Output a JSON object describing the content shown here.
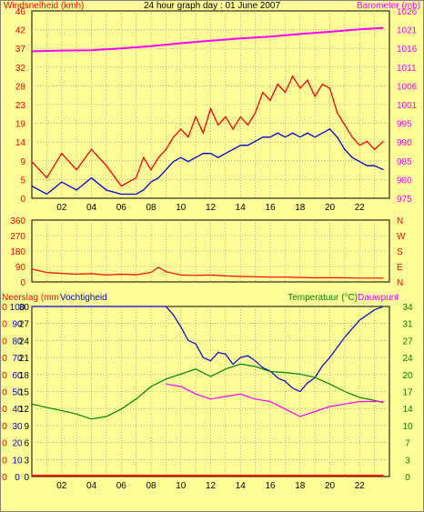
{
  "chart_data": [
    {
      "type": "line",
      "title": "24 hour graph day : 01 June 2007",
      "ylabel_left": "Windsnelheid (kmh)",
      "ylabel_right": "Barometer (mb)",
      "x_ticks": [
        "02",
        "04",
        "06",
        "08",
        "10",
        "12",
        "14",
        "16",
        "18",
        "20",
        "22"
      ],
      "y_left_ticks": [
        "0",
        "5",
        "9",
        "14",
        "19",
        "23",
        "28",
        "32",
        "37",
        "42",
        "46"
      ],
      "y_left_range": [
        0,
        46
      ],
      "y_right_ticks": [
        "975",
        "980",
        "985",
        "990",
        "995",
        "1001",
        "1006",
        "1011",
        "1016",
        "1021",
        "1026"
      ],
      "y_right_range": [
        975,
        1026
      ],
      "x_range": [
        0,
        24
      ],
      "grid": true,
      "series": [
        {
          "color": "#ff00ff",
          "x": [
            0,
            2,
            4,
            6,
            8,
            10,
            12,
            14,
            16,
            18,
            20,
            22,
            23.6
          ],
          "y": [
            1015,
            1015.2,
            1015.3,
            1015.8,
            1016.4,
            1017.2,
            1017.9,
            1018.5,
            1019,
            1019.7,
            1020.3,
            1021,
            1021.4
          ]
        },
        {
          "color": "#ff0000",
          "x": [
            0,
            1,
            2,
            3,
            4,
            5,
            6,
            7,
            7.5,
            8,
            8.5,
            9,
            9.5,
            10,
            10.5,
            11,
            11.5,
            12,
            12.5,
            13,
            13.5,
            14,
            14.5,
            15,
            15.5,
            16,
            16.5,
            17,
            17.5,
            18,
            18.5,
            19,
            19.5,
            20,
            20.5,
            21,
            21.5,
            22,
            22.5,
            23,
            23.6
          ],
          "y": [
            9,
            5,
            11,
            7,
            12,
            8,
            3,
            5,
            10,
            7,
            10,
            12,
            15,
            17,
            15,
            20,
            16,
            22,
            18,
            20,
            17,
            20,
            18,
            21,
            26,
            24,
            28,
            26,
            30,
            27,
            29,
            25,
            28,
            27,
            21,
            18,
            15,
            13,
            14,
            12,
            14
          ]
        },
        {
          "color": "#0000cc",
          "x": [
            0,
            1,
            2,
            3,
            4,
            5,
            6,
            7,
            7.5,
            8,
            8.5,
            9,
            9.5,
            10,
            10.5,
            11,
            11.5,
            12,
            12.5,
            13,
            13.5,
            14,
            14.5,
            15,
            15.5,
            16,
            16.5,
            17,
            17.5,
            18,
            18.5,
            19,
            19.5,
            20,
            20.5,
            21,
            21.5,
            22,
            22.5,
            23,
            23.6
          ],
          "y": [
            3,
            1,
            4,
            2,
            5,
            2,
            1,
            1,
            2,
            4,
            5,
            7,
            9,
            10,
            9,
            10,
            11,
            11,
            10,
            11,
            12,
            13,
            13,
            14,
            15,
            15,
            16,
            15,
            16,
            15,
            16,
            15,
            16,
            17,
            15,
            12,
            10,
            9,
            8,
            8,
            7
          ]
        }
      ]
    },
    {
      "type": "line",
      "ylabel_right_letters": [
        "N",
        "W",
        "S",
        "E",
        "N"
      ],
      "y_left_ticks": [
        "0",
        "90",
        "180",
        "270",
        "360"
      ],
      "y_range": [
        0,
        360
      ],
      "x_range": [
        0,
        24
      ],
      "grid": true,
      "series": [
        {
          "color": "#ff0000",
          "x": [
            0,
            1,
            2,
            3,
            4,
            5,
            6,
            7,
            8,
            8.5,
            9,
            10,
            11,
            12,
            13,
            14,
            15,
            16,
            17,
            18,
            19,
            20,
            21,
            22,
            23.6
          ],
          "y": [
            75,
            55,
            50,
            45,
            48,
            40,
            45,
            42,
            55,
            85,
            60,
            40,
            38,
            40,
            35,
            32,
            30,
            28,
            28,
            26,
            24,
            25,
            24,
            22,
            22
          ]
        }
      ]
    },
    {
      "type": "line",
      "ylabel_left": "Neerslag (mm",
      "ylabel_left2": "Vochtigheid",
      "ylabel_right": "Temperatuur (°C)",
      "ylabel_right2": "Dauwpunt",
      "y_left_ticks_a": [
        "0",
        "0",
        "0",
        "0",
        "0",
        "0",
        "0",
        "0",
        "0",
        "0",
        "0"
      ],
      "y_left_ticks_b": [
        "0",
        "10",
        "20",
        "30",
        "40",
        "50",
        "60",
        "70",
        "80",
        "90",
        "100"
      ],
      "y_left_ticks_c": [
        "0",
        "3",
        "6",
        "9",
        "12",
        "15",
        "18",
        "21",
        "24",
        "27",
        "30"
      ],
      "y_right_ticks": [
        "0",
        "3",
        "7",
        "10",
        "14",
        "17",
        "20",
        "24",
        "27",
        "31",
        "34"
      ],
      "y_range_humidity": [
        0,
        100
      ],
      "y_range_temp": [
        0,
        34
      ],
      "x_range": [
        0,
        24
      ],
      "grid": true,
      "series": [
        {
          "name": "Vochtigheid",
          "color": "#0000cc",
          "x": [
            0,
            2,
            4,
            6,
            8,
            9,
            9.5,
            10,
            10.5,
            11,
            11.5,
            12,
            12.5,
            13,
            13.5,
            14,
            14.5,
            15,
            15.5,
            16,
            16.5,
            17,
            17.5,
            18,
            18.5,
            19,
            19.5,
            20,
            21,
            22,
            23,
            23.6
          ],
          "y": [
            100,
            100,
            100,
            100,
            100,
            100,
            95,
            88,
            80,
            78,
            70,
            68,
            73,
            72,
            66,
            70,
            71,
            68,
            64,
            62,
            58,
            56,
            52,
            50,
            55,
            58,
            65,
            70,
            82,
            92,
            98,
            100
          ]
        },
        {
          "name": "Temperatuur (°C)",
          "color": "#008000",
          "x": [
            0,
            1,
            2,
            3,
            4,
            5,
            6,
            7,
            8,
            9,
            10,
            11,
            12,
            13,
            14,
            15,
            16,
            17,
            18,
            19,
            20,
            21,
            22,
            23,
            23.6
          ],
          "y": [
            14.5,
            13.8,
            13.2,
            12.5,
            11.5,
            12,
            13.5,
            15.5,
            18,
            19.5,
            20.5,
            21.5,
            20,
            21.5,
            22.5,
            22,
            21,
            20.8,
            20.5,
            19.8,
            18.5,
            17,
            15.8,
            15.2,
            14.8
          ]
        },
        {
          "name": "Dauwpunt",
          "color": "#ff00ff",
          "x": [
            9,
            10,
            11,
            12,
            13,
            14,
            15,
            16,
            17,
            18,
            19,
            20,
            21,
            22,
            23,
            23.6
          ],
          "y": [
            18.5,
            18,
            16.5,
            15.5,
            16,
            16.5,
            15.5,
            15,
            13.5,
            12,
            13,
            14,
            14.5,
            15,
            15,
            15
          ]
        },
        {
          "name": "Neerslag (mm",
          "color": "#ff0000",
          "x": [
            0,
            23.6
          ],
          "y": [
            0,
            0
          ]
        }
      ]
    }
  ]
}
